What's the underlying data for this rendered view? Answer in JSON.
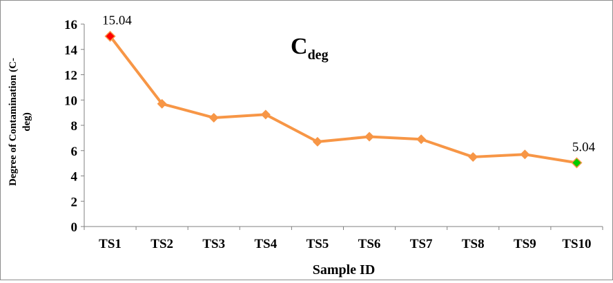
{
  "chart_data": {
    "type": "line",
    "title": "C",
    "title_subscript": "deg",
    "xlabel": "Sample ID",
    "ylabel_line1": "Degree of Contamination (C-",
    "ylabel_line2": "deg)",
    "categories": [
      "TS1",
      "TS2",
      "TS3",
      "TS4",
      "TS5",
      "TS6",
      "TS7",
      "TS8",
      "TS9",
      "TS10"
    ],
    "series": [
      {
        "name": "",
        "values": [
          15.04,
          9.7,
          8.6,
          8.85,
          6.7,
          7.1,
          6.9,
          5.5,
          5.7,
          5.04
        ],
        "color": "#F79646"
      }
    ],
    "highlight": [
      {
        "index": 0,
        "color": "#FF0000",
        "label": "15.04"
      },
      {
        "index": 9,
        "color": "#00CC00",
        "label": "5.04"
      }
    ],
    "ylim": [
      0,
      16
    ],
    "yticks": [
      "0",
      "2",
      "4",
      "6",
      "8",
      "10",
      "12",
      "14",
      "16"
    ],
    "grid": false,
    "legend": "none"
  }
}
